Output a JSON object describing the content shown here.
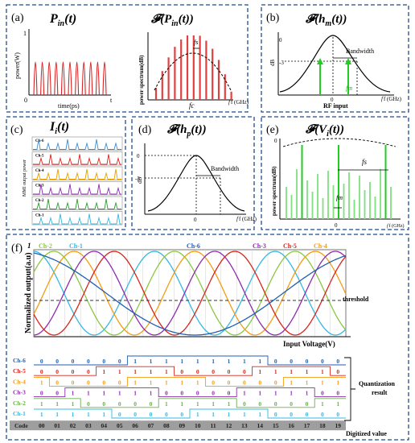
{
  "panel_a": {
    "label": "(a)",
    "left_title": "P_in(t)",
    "right_title": "F(P_in(t))",
    "ylabel_left": "power(W)",
    "ytick_top": "1",
    "ytick_origin": "0",
    "xaxis_t": "t",
    "xlabel_left": "time(ps)",
    "ylabel_right": "power spectrum(dB)",
    "fs_label": "fs",
    "fc_label": "fc",
    "f_axis": "f (GHz)"
  },
  "panel_b": {
    "label": "(b)",
    "title": "F(h_m(t))",
    "ylabel": "dB",
    "ytick_0": "0",
    "ytick_3": "-3",
    "bandwidth": "Bandwidth",
    "fm_label": "fm",
    "xlabel": "RF input",
    "xtick_0": "0",
    "f_axis": "f (GHz)"
  },
  "panel_c": {
    "label": "(c)",
    "title": "I_i(t)",
    "ylabel": "MMI output power",
    "channels": [
      "Ch-6",
      "Ch-5",
      "Ch-4",
      "Ch-3",
      "Ch-2",
      "Ch-1"
    ],
    "colors": [
      "#3c8fd6",
      "#d9251c",
      "#e8a000",
      "#8e2bb0",
      "#2a9d2a",
      "#35b8e0"
    ]
  },
  "panel_d": {
    "label": "(d)",
    "title": "F(h_p(t))",
    "ylabel": "dB",
    "ytick_0": "0",
    "ytick_3": "-3",
    "bandwidth": "Bandwidth",
    "xtick_0": "0",
    "f_axis": "f (GHz)"
  },
  "panel_e": {
    "label": "(e)",
    "title": "F(V_i(t))",
    "ylabel": "power spectrum(dB)",
    "ytick_top": "0",
    "fs_label": "fs",
    "fm_label": "fm",
    "xtick_0": "0",
    "f_axis": "f (GHz)"
  },
  "panel_f": {
    "label": "(f)",
    "ylabel": "Normalized output(a.u)",
    "ytick_top": "1",
    "xlabel": "Input Voltage(V)",
    "threshold": "threshold",
    "quantization_result": "Quantization result",
    "digitized_value": "Digitized value",
    "code_label": "Code",
    "curve_labels": [
      {
        "name": "Ch-2",
        "color": "#8cc63f"
      },
      {
        "name": "Ch-1",
        "color": "#35b8e0"
      },
      {
        "name": "Ch-6",
        "color": "#1f5fb4"
      },
      {
        "name": "Ch-3",
        "color": "#8e2bb0"
      },
      {
        "name": "Ch-5",
        "color": "#d9251c"
      },
      {
        "name": "Ch-4",
        "color": "#f39c12"
      }
    ],
    "code_rows": [
      {
        "name": "Ch-6",
        "color": "#1f5fb4",
        "bits": [
          "0",
          "0",
          "0",
          "0",
          "0",
          "0",
          "1",
          "1",
          "1",
          "1",
          "1",
          "1",
          "1",
          "1",
          "1",
          "0",
          "0",
          "0",
          "0",
          "0"
        ]
      },
      {
        "name": "Ch-5",
        "color": "#d9251c",
        "bits": [
          "0",
          "0",
          "0",
          "0",
          "1",
          "1",
          "1",
          "1",
          "1",
          "0",
          "0",
          "0",
          "0",
          "0",
          "1",
          "1",
          "1",
          "1",
          "1",
          "0"
        ]
      },
      {
        "name": "Ch-4",
        "color": "#f39c12",
        "bits": [
          "1",
          "0",
          "0",
          "0",
          "0",
          "0",
          "1",
          "1",
          "1",
          "1",
          "1",
          "0",
          "0",
          "0",
          "0",
          "0",
          "1",
          "1",
          "1",
          "1"
        ]
      },
      {
        "name": "Ch-3",
        "color": "#8e2bb0",
        "bits": [
          "0",
          "0",
          "1",
          "1",
          "1",
          "1",
          "1",
          "1",
          "0",
          "0",
          "0",
          "0",
          "0",
          "1",
          "1",
          "1",
          "1",
          "1",
          "0",
          "0"
        ]
      },
      {
        "name": "Ch-2",
        "color": "#6ab04c",
        "bits": [
          "1",
          "1",
          "1",
          "0",
          "0",
          "0",
          "0",
          "0",
          "1",
          "1",
          "1",
          "1",
          "1",
          "0",
          "0",
          "0",
          "0",
          "0",
          "1",
          "1"
        ]
      },
      {
        "name": "Ch-1",
        "color": "#35b8e0",
        "bits": [
          "1",
          "1",
          "1",
          "1",
          "1",
          "0",
          "0",
          "0",
          "0",
          "0",
          "1",
          "1",
          "1",
          "1",
          "1",
          "0",
          "0",
          "0",
          "0",
          "0"
        ]
      }
    ],
    "codes": [
      "00",
      "01",
      "02",
      "03",
      "04",
      "05",
      "06",
      "07",
      "08",
      "09",
      "10",
      "11",
      "12",
      "13",
      "14",
      "15",
      "16",
      "17",
      "18",
      "19"
    ]
  }
}
